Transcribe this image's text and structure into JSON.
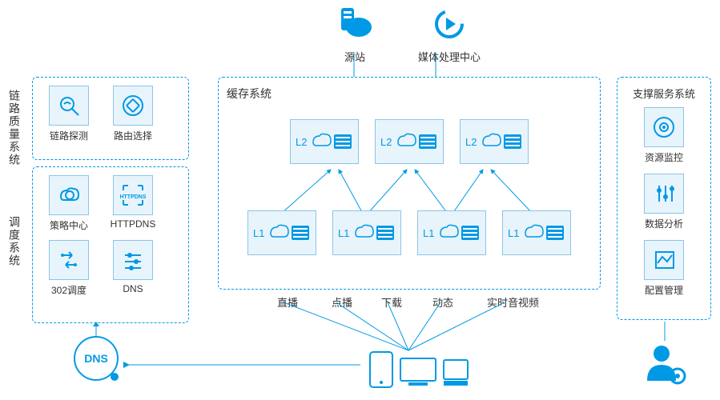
{
  "colors": {
    "primary": "#0099e5",
    "border": "#8bc5e8",
    "fill": "#e8f4fb",
    "text": "#333333",
    "bg": "#ffffff"
  },
  "top": {
    "origin": {
      "label": "源站"
    },
    "media": {
      "label": "媒体处理中心"
    }
  },
  "left_labels": {
    "link_quality": "链路质量系统",
    "scheduling": "调度系统"
  },
  "link_panel": {
    "tiles": [
      {
        "label": "链路探测",
        "name": "link-probe"
      },
      {
        "label": "路由选择",
        "name": "route-select"
      }
    ]
  },
  "sched_panel": {
    "tiles": [
      {
        "label": "策略中心",
        "name": "policy-center"
      },
      {
        "label": "HTTPDNS",
        "name": "httpdns"
      },
      {
        "label": "302调度",
        "name": "redirect-302"
      },
      {
        "label": "DNS",
        "name": "dns-tile"
      }
    ]
  },
  "cache_panel": {
    "title": "缓存系统",
    "l2": [
      "L2",
      "L2",
      "L2"
    ],
    "l1": [
      "L1",
      "L1",
      "L1",
      "L1"
    ]
  },
  "support_panel": {
    "title": "支撑服务系统",
    "tiles": [
      {
        "label": "资源监控",
        "name": "resource-monitor"
      },
      {
        "label": "数据分析",
        "name": "data-analysis"
      },
      {
        "label": "配置管理",
        "name": "config-mgmt"
      }
    ]
  },
  "services": [
    "直播",
    "点播",
    "下载",
    "动态",
    "实时音视频"
  ],
  "dns_label": "DNS"
}
